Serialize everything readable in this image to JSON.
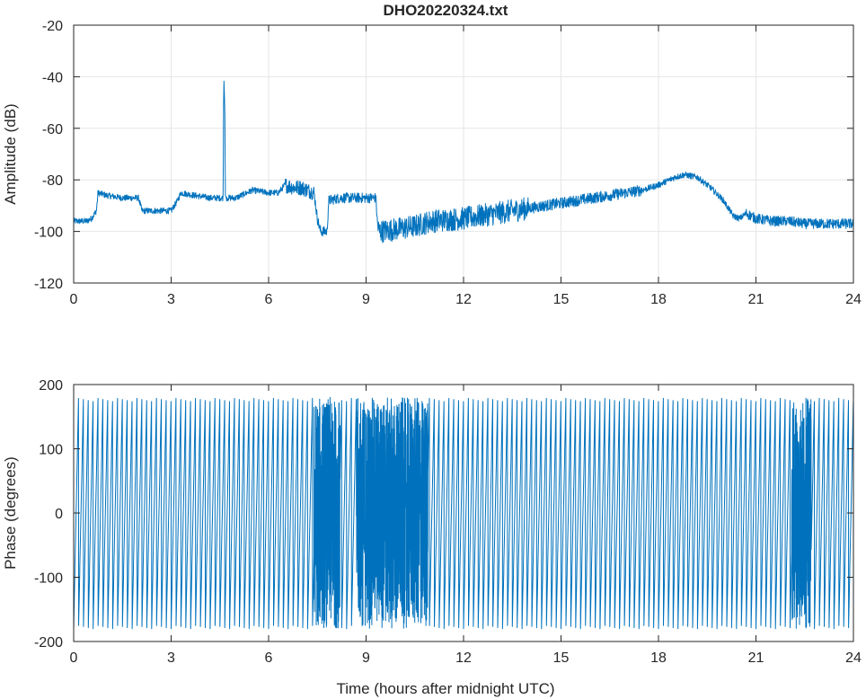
{
  "chart_data": [
    {
      "type": "line",
      "title": "DHO20220324.txt",
      "xlabel": "",
      "ylabel": "Amplitude (dB)",
      "xlim": [
        0,
        24
      ],
      "ylim": [
        -120,
        -20
      ],
      "xticks": [
        "0",
        "3",
        "6",
        "9",
        "12",
        "15",
        "18",
        "21",
        "24"
      ],
      "yticks": [
        "-20",
        "-40",
        "-60",
        "-80",
        "-100",
        "-120"
      ],
      "grid": true,
      "series_color": "#0072bd",
      "series": [
        {
          "x": [
            0,
            0.4,
            0.55,
            0.7,
            0.75,
            1.0,
            1.5,
            2.0,
            2.1,
            2.5,
            3.0,
            3.2,
            3.3,
            3.7,
            4.2,
            4.6,
            4.62,
            4.65,
            4.67,
            4.7,
            5.0,
            5.5,
            6.0,
            6.3,
            6.5,
            6.8,
            7.0,
            7.4,
            7.5,
            7.6,
            7.8,
            7.85,
            8.2,
            8.8,
            9.3,
            9.35,
            9.4,
            10.0,
            10.5,
            11.0,
            12.0,
            13.0,
            14.0,
            15.0,
            16.0,
            17.0,
            17.5,
            18.0,
            18.5,
            18.8,
            19.2,
            19.6,
            20.0,
            20.3,
            20.5,
            20.7,
            21.0,
            21.5,
            22.0,
            22.5,
            23.0,
            23.5,
            24.0
          ],
          "y": [
            -96,
            -96,
            -95,
            -92,
            -85,
            -86,
            -87,
            -87,
            -92,
            -92,
            -92,
            -88,
            -85,
            -86,
            -87,
            -87,
            -40,
            -51,
            -86,
            -87,
            -87,
            -84,
            -85,
            -85,
            -82,
            -83,
            -83,
            -85,
            -95,
            -100,
            -100,
            -88,
            -87,
            -87,
            -87,
            -97,
            -100,
            -99,
            -98,
            -96,
            -95,
            -93,
            -91,
            -89,
            -87,
            -85,
            -84,
            -82,
            -79,
            -78,
            -79,
            -83,
            -88,
            -94,
            -95,
            -93,
            -95,
            -96,
            -96,
            -97,
            -97,
            -97,
            -97
          ]
        }
      ]
    },
    {
      "type": "line",
      "title": "",
      "xlabel": "Time (hours after midnight UTC)",
      "ylabel": "Phase (degrees)",
      "xlim": [
        0,
        24
      ],
      "ylim": [
        -200,
        200
      ],
      "xticks": [
        "0",
        "3",
        "6",
        "9",
        "12",
        "15",
        "18",
        "21",
        "24"
      ],
      "yticks": [
        "200",
        "100",
        "0",
        "-100",
        "-200"
      ],
      "grid": false,
      "series_color": "#0072bd",
      "phase_wrap_deg": [
        -180,
        180
      ],
      "phase_rate_deg_per_hour": 2400,
      "disturbed_intervals_hours": [
        [
          7.4,
          8.2
        ],
        [
          8.7,
          10.9
        ],
        [
          22.1,
          22.7
        ]
      ]
    }
  ]
}
